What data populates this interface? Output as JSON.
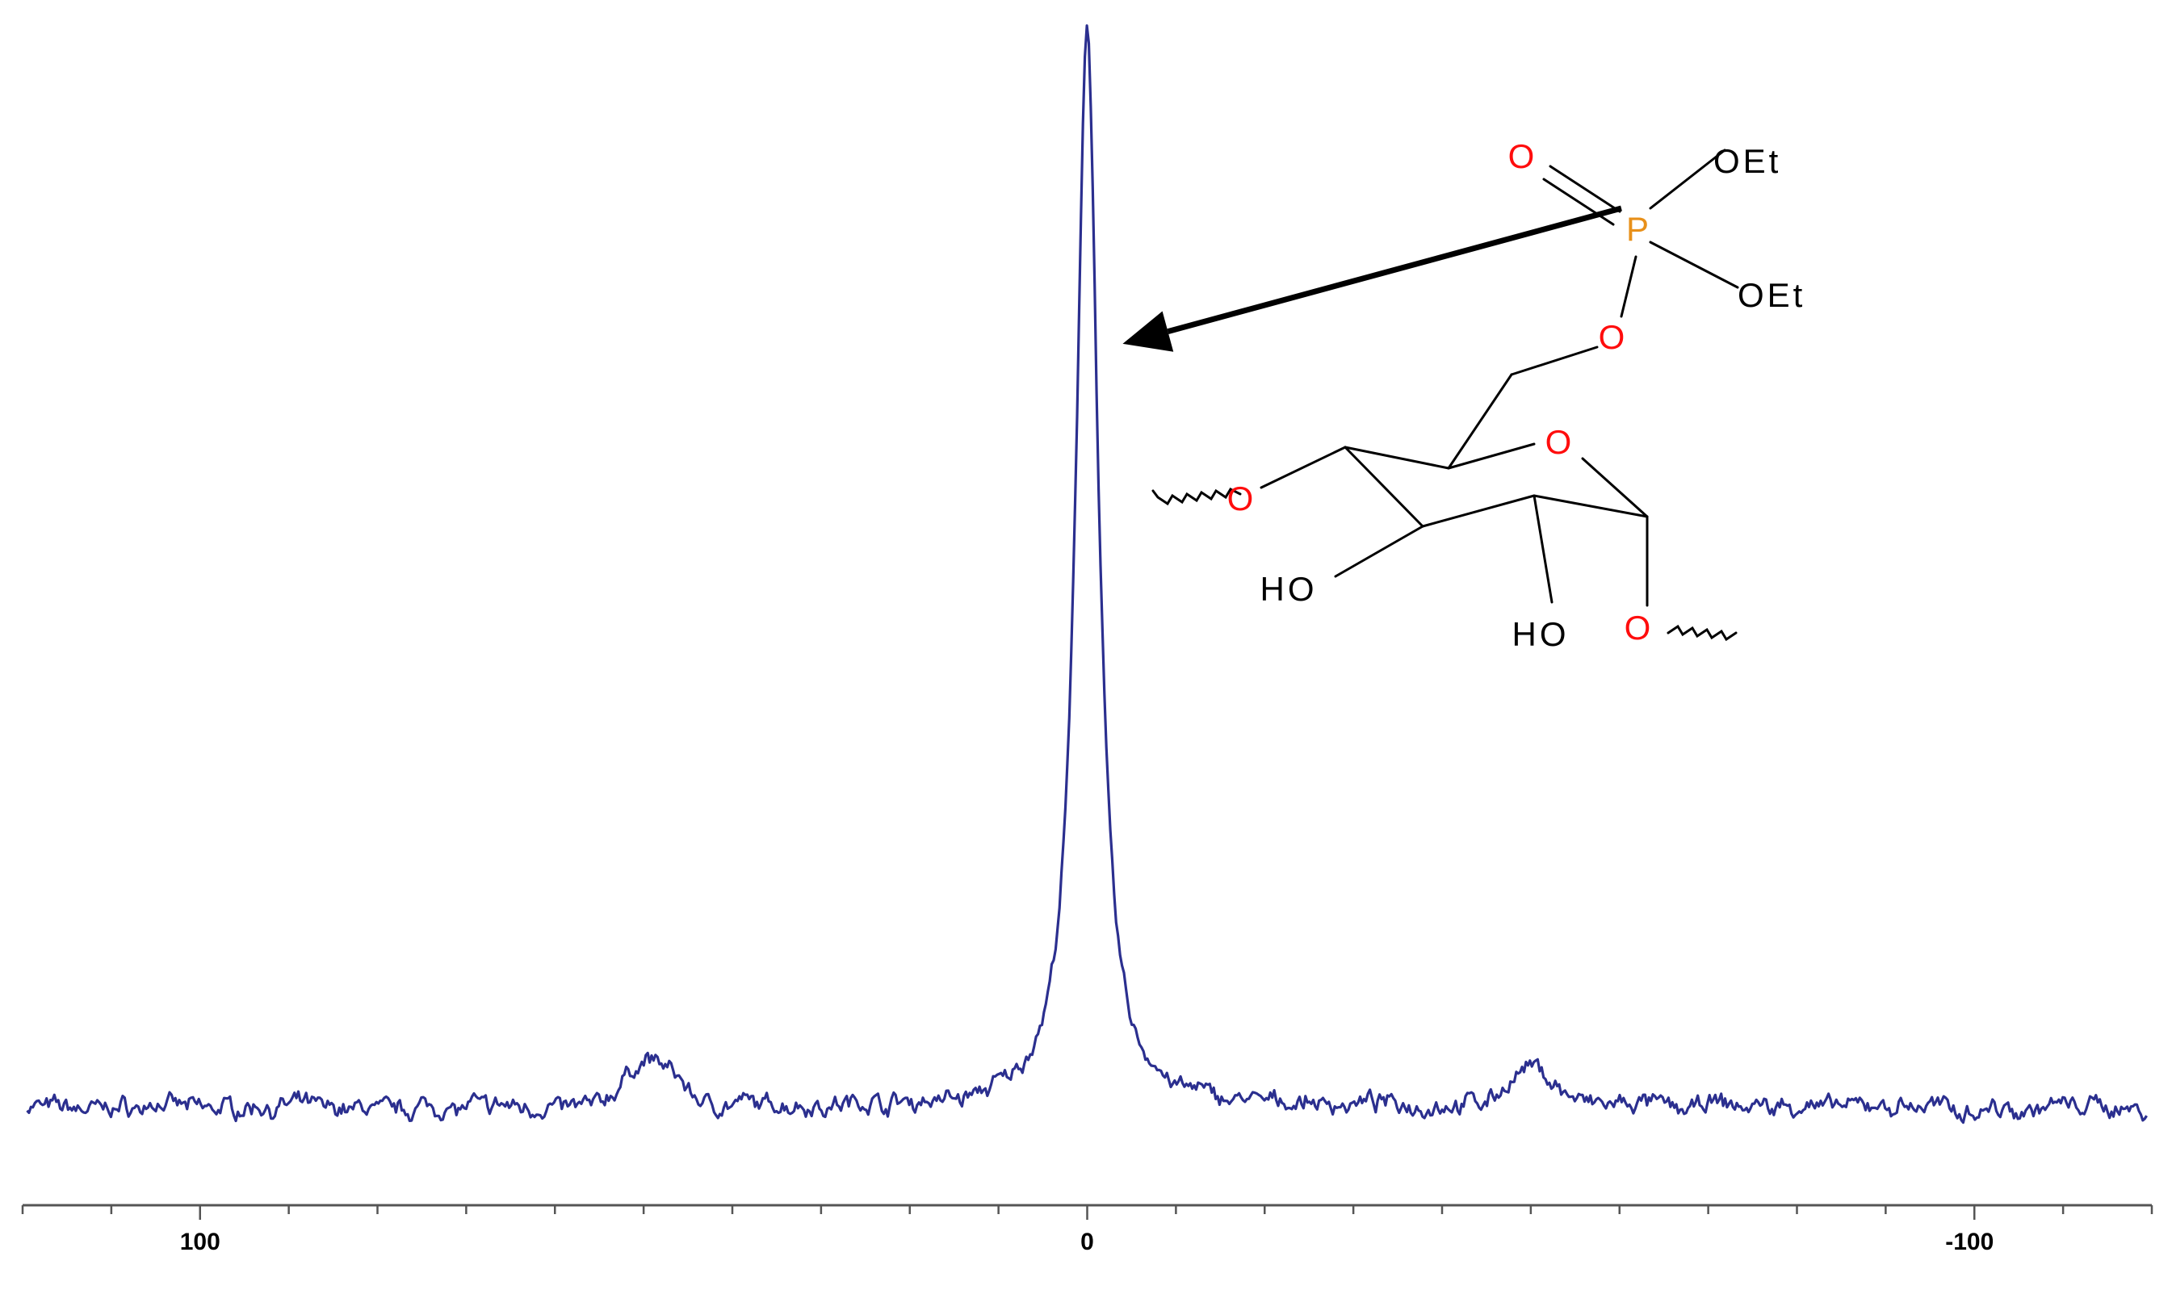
{
  "chart_data": {
    "type": "line",
    "title": "",
    "xlabel": "",
    "ylabel": "",
    "x_axis": {
      "range": [
        120,
        -120
      ],
      "reversed": true,
      "major_ticks": [
        100,
        0,
        -100
      ],
      "tick_labels": [
        "100",
        "0",
        "-100"
      ],
      "minor_tick_step": 10
    },
    "y_axis": {
      "range": [
        0,
        1
      ],
      "visible": false
    },
    "grid": false,
    "legend": null,
    "series": [
      {
        "peak_position": 0,
        "peak_height": 1.0,
        "peak_fwhm": 3,
        "baseline": 0.085,
        "noise_amplitude": 0.012,
        "minor_bumps": [
          {
            "x": 49,
            "height": 0.04
          },
          {
            "x": -50,
            "height": 0.03
          }
        ],
        "color": "#2b2f8f"
      }
    ],
    "annotations": [
      {
        "type": "arrow",
        "from": "P-atom",
        "to_x": -4,
        "to_y": 0.73
      }
    ],
    "structure": {
      "atoms": [
        "O",
        "P",
        "OEt",
        "OEt",
        "O",
        "O",
        "O",
        "HO",
        "HO",
        "O"
      ],
      "element_colors": {
        "O": "#ff0d0d",
        "P": "#e8901a",
        "other": "#000000"
      }
    }
  }
}
